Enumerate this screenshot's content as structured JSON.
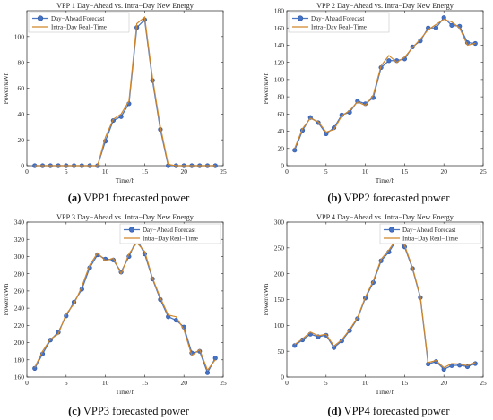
{
  "chart_data": [
    {
      "type": "line",
      "title": "VPP 1 Day−Ahead vs. Intra−Day New Energy",
      "caption_letter": "(a)",
      "caption_text": " VPP1 forecasted power",
      "xlabel": "Time/h",
      "ylabel": "Power/kWh",
      "xlim": [
        0,
        25
      ],
      "ylim": [
        0,
        120
      ],
      "xticks": [
        0,
        5,
        10,
        15,
        20,
        25
      ],
      "yticks": [
        0,
        20,
        40,
        60,
        80,
        100
      ],
      "legend_position": "top-left",
      "grid": false,
      "x": [
        1,
        2,
        3,
        4,
        5,
        6,
        7,
        8,
        9,
        10,
        11,
        12,
        13,
        14,
        15,
        16,
        17,
        18,
        19,
        20,
        21,
        22,
        23,
        24
      ],
      "series": [
        {
          "name": "Day−Ahead Forecast",
          "values": [
            0,
            0,
            0,
            0,
            0,
            0,
            0,
            0,
            0,
            19,
            35,
            38,
            48,
            107,
            113,
            66,
            28,
            0,
            0,
            0,
            0,
            0,
            0,
            0
          ]
        },
        {
          "name": "Intra−Day Real−Time",
          "values": [
            0,
            0,
            0,
            0,
            0,
            0,
            0,
            0,
            0,
            22,
            36,
            40,
            50,
            110,
            115,
            68,
            30,
            1,
            0,
            0,
            0,
            0,
            0,
            0
          ]
        }
      ]
    },
    {
      "type": "line",
      "title": "VPP 2 Day−Ahead vs. Intra−Day New Energy",
      "caption_letter": "(b)",
      "caption_text": " VPP2 forecasted power",
      "xlabel": "Time/h",
      "ylabel": "Power/kWh",
      "xlim": [
        0,
        25
      ],
      "ylim": [
        0,
        180
      ],
      "xticks": [
        0,
        5,
        10,
        15,
        20,
        25
      ],
      "yticks": [
        0,
        20,
        40,
        60,
        80,
        100,
        120,
        140,
        160,
        180
      ],
      "legend_position": "top-left",
      "grid": false,
      "x": [
        1,
        2,
        3,
        4,
        5,
        6,
        7,
        8,
        9,
        10,
        11,
        12,
        13,
        14,
        15,
        16,
        17,
        18,
        19,
        20,
        21,
        22,
        23,
        24
      ],
      "series": [
        {
          "name": "Day−Ahead Forecast",
          "values": [
            18,
            41,
            56,
            50,
            37,
            44,
            59,
            62,
            75,
            72,
            79,
            114,
            122,
            122,
            124,
            138,
            145,
            160,
            160,
            172,
            163,
            162,
            143,
            142
          ]
        },
        {
          "name": "Intra−Day Real−Time",
          "values": [
            20,
            43,
            55,
            51,
            39,
            42,
            58,
            64,
            74,
            70,
            82,
            116,
            128,
            120,
            126,
            137,
            147,
            158,
            164,
            170,
            167,
            160,
            140,
            142
          ]
        }
      ]
    },
    {
      "type": "line",
      "title": "VPP 3 Day−Ahead vs. Intra−Day New Energy",
      "caption_letter": "(c)",
      "caption_text": " VPP3 forecasted power",
      "xlabel": "Time/h",
      "ylabel": "Power/kWh",
      "xlim": [
        0,
        25
      ],
      "ylim": [
        160,
        340
      ],
      "xticks": [
        0,
        5,
        10,
        15,
        20,
        25
      ],
      "yticks": [
        160,
        180,
        200,
        220,
        240,
        260,
        280,
        300,
        320,
        340
      ],
      "legend_position": "top-right",
      "grid": false,
      "x": [
        1,
        2,
        3,
        4,
        5,
        6,
        7,
        8,
        9,
        10,
        11,
        12,
        13,
        14,
        15,
        16,
        17,
        18,
        19,
        20,
        21,
        22,
        23,
        24
      ],
      "series": [
        {
          "name": "Day−Ahead Forecast",
          "values": [
            170,
            187,
            203,
            212,
            231,
            247,
            262,
            287,
            302,
            297,
            296,
            282,
            300,
            320,
            303,
            274,
            250,
            230,
            226,
            218,
            188,
            190,
            165,
            182
          ]
        },
        {
          "name": "Intra−Day Real−Time",
          "values": [
            171,
            190,
            204,
            210,
            233,
            245,
            265,
            290,
            304,
            295,
            298,
            280,
            303,
            316,
            306,
            275,
            252,
            232,
            230,
            215,
            185,
            192,
            168,
            180
          ]
        }
      ]
    },
    {
      "type": "line",
      "title": "VPP 4 Day−Ahead vs. Intra−Day New Energy",
      "caption_letter": "(d)",
      "caption_text": " VPP4 forecasted power",
      "xlabel": "Time/h",
      "ylabel": "Power/kWh",
      "xlim": [
        0,
        25
      ],
      "ylim": [
        0,
        300
      ],
      "xticks": [
        0,
        5,
        10,
        15,
        20,
        25
      ],
      "yticks": [
        0,
        50,
        100,
        150,
        200,
        250,
        300
      ],
      "legend_position": "top-right",
      "grid": false,
      "x": [
        1,
        2,
        3,
        4,
        5,
        6,
        7,
        8,
        9,
        10,
        11,
        12,
        13,
        14,
        15,
        16,
        17,
        18,
        19,
        20,
        21,
        22,
        23,
        24
      ],
      "series": [
        {
          "name": "Day−Ahead Forecast",
          "values": [
            61,
            72,
            83,
            78,
            81,
            57,
            70,
            90,
            113,
            153,
            183,
            225,
            242,
            266,
            252,
            210,
            154,
            25,
            30,
            15,
            22,
            23,
            20,
            26
          ]
        },
        {
          "name": "Intra−Day Real−Time",
          "values": [
            63,
            74,
            87,
            80,
            83,
            60,
            72,
            92,
            115,
            155,
            186,
            228,
            246,
            268,
            255,
            212,
            156,
            28,
            32,
            18,
            26,
            25,
            22,
            28
          ]
        }
      ]
    }
  ],
  "colors": {
    "forecast_line": "#4a76c2",
    "forecast_marker": "#4472c4",
    "forecast_marker_edge": "#2f55a4",
    "realtime_line": "#d0862a",
    "axis": "#262626",
    "caption": "#111111"
  }
}
